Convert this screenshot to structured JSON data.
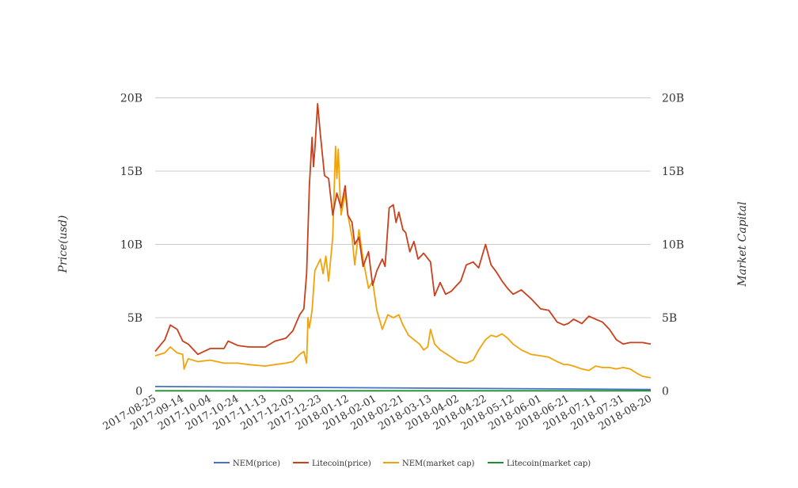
{
  "chart_data": {
    "type": "line",
    "title": "",
    "ylabel_left": "Price(usd)",
    "ylabel_right": "Market Capital",
    "ylim_left": [
      0,
      20000000000
    ],
    "ylim_right": [
      0,
      20000000000
    ],
    "y_ticks_left": [
      "0",
      "5B",
      "10B",
      "15B",
      "20B"
    ],
    "y_ticks_right": [
      "0",
      "5B",
      "10B",
      "15B",
      "20B"
    ],
    "y_tick_values": [
      0,
      5000000000,
      10000000000,
      15000000000,
      20000000000
    ],
    "x_ticks": [
      "2017-08-25",
      "2017-09-14",
      "2017-10-04",
      "2017-10-24",
      "2017-11-13",
      "2017-12-03",
      "2017-12-23",
      "2018-01-12",
      "2018-02-01",
      "2018-02-21",
      "2018-03-13",
      "2018-04-02",
      "2018-04-22",
      "2018-05-12",
      "2018-06-01",
      "2018-06-21",
      "2018-07-11",
      "2018-07-31",
      "2018-08-20"
    ],
    "x_range": [
      "2017-08-25",
      "2018-08-20"
    ],
    "grid": true,
    "legend_position": "bottom",
    "series": [
      {
        "name": "NEM(price)",
        "color": "#4472c4",
        "x": [
          "2017-08-25",
          "2018-08-20"
        ],
        "y": [
          0.3,
          0.1
        ]
      },
      {
        "name": "Litecoin(price)",
        "color": "#c8401c",
        "x": [
          "2017-08-25",
          "2017-09-01",
          "2017-09-05",
          "2017-09-10",
          "2017-09-14",
          "2017-09-18",
          "2017-09-25",
          "2017-10-04",
          "2017-10-14",
          "2017-10-17",
          "2017-10-24",
          "2017-11-01",
          "2017-11-13",
          "2017-11-20",
          "2017-11-28",
          "2017-12-03",
          "2017-12-08",
          "2017-12-11",
          "2017-12-13",
          "2017-12-15",
          "2017-12-17",
          "2017-12-18",
          "2017-12-19",
          "2017-12-21",
          "2017-12-23",
          "2017-12-26",
          "2017-12-29",
          "2018-01-01",
          "2018-01-04",
          "2018-01-07",
          "2018-01-10",
          "2018-01-12",
          "2018-01-15",
          "2018-01-17",
          "2018-01-20",
          "2018-01-23",
          "2018-01-27",
          "2018-01-30",
          "2018-02-02",
          "2018-02-06",
          "2018-02-08",
          "2018-02-11",
          "2018-02-14",
          "2018-02-16",
          "2018-02-18",
          "2018-02-21",
          "2018-02-23",
          "2018-02-26",
          "2018-03-01",
          "2018-03-04",
          "2018-03-08",
          "2018-03-13",
          "2018-03-16",
          "2018-03-20",
          "2018-03-24",
          "2018-03-28",
          "2018-04-01",
          "2018-04-04",
          "2018-04-08",
          "2018-04-13",
          "2018-04-17",
          "2018-04-22",
          "2018-04-26",
          "2018-04-30",
          "2018-05-04",
          "2018-05-08",
          "2018-05-12",
          "2018-05-18",
          "2018-05-25",
          "2018-06-01",
          "2018-06-07",
          "2018-06-13",
          "2018-06-18",
          "2018-06-21",
          "2018-06-25",
          "2018-07-01",
          "2018-07-06",
          "2018-07-11",
          "2018-07-16",
          "2018-07-21",
          "2018-07-26",
          "2018-07-31",
          "2018-08-05",
          "2018-08-10",
          "2018-08-14",
          "2018-08-20"
        ],
        "y": [
          2.7,
          3.5,
          4.5,
          4.2,
          3.4,
          3.2,
          2.5,
          2.9,
          2.9,
          3.4,
          3.1,
          3.0,
          3.0,
          3.4,
          3.6,
          4.1,
          5.2,
          5.6,
          8.0,
          14.0,
          17.3,
          15.3,
          16.5,
          19.6,
          17.5,
          14.7,
          14.5,
          12.0,
          13.5,
          12.5,
          14.0,
          12.0,
          11.5,
          10.0,
          10.5,
          8.5,
          9.5,
          7.2,
          8.2,
          9.0,
          8.5,
          12.5,
          12.7,
          11.5,
          12.2,
          11.0,
          10.8,
          9.5,
          10.2,
          9.0,
          9.4,
          8.8,
          6.5,
          7.4,
          6.6,
          6.8,
          7.2,
          7.5,
          8.6,
          8.8,
          8.4,
          10.0,
          8.6,
          8.1,
          7.5,
          7.0,
          6.6,
          6.9,
          6.3,
          5.6,
          5.5,
          4.7,
          4.5,
          4.6,
          4.9,
          4.6,
          5.1,
          4.9,
          4.7,
          4.2,
          3.5,
          3.2,
          3.3,
          3.3,
          3.3,
          3.2
        ]
      },
      {
        "name": "NEM(market cap)",
        "color": "#f0a30a",
        "x": [
          "2017-08-25",
          "2017-09-01",
          "2017-09-05",
          "2017-09-10",
          "2017-09-14",
          "2017-09-15",
          "2017-09-18",
          "2017-09-25",
          "2017-10-04",
          "2017-10-14",
          "2017-10-24",
          "2017-11-01",
          "2017-11-13",
          "2017-11-20",
          "2017-11-28",
          "2017-12-03",
          "2017-12-08",
          "2017-12-11",
          "2017-12-13",
          "2017-12-14",
          "2017-12-15",
          "2017-12-17",
          "2017-12-19",
          "2017-12-23",
          "2017-12-25",
          "2017-12-27",
          "2017-12-29",
          "2018-01-01",
          "2018-01-03",
          "2018-01-04",
          "2018-01-05",
          "2018-01-06",
          "2018-01-07",
          "2018-01-10",
          "2018-01-12",
          "2018-01-15",
          "2018-01-17",
          "2018-01-20",
          "2018-01-23",
          "2018-01-27",
          "2018-01-30",
          "2018-02-02",
          "2018-02-06",
          "2018-02-10",
          "2018-02-14",
          "2018-02-18",
          "2018-02-21",
          "2018-02-25",
          "2018-03-01",
          "2018-03-05",
          "2018-03-08",
          "2018-03-11",
          "2018-03-13",
          "2018-03-16",
          "2018-03-20",
          "2018-03-25",
          "2018-04-02",
          "2018-04-08",
          "2018-04-13",
          "2018-04-17",
          "2018-04-22",
          "2018-04-26",
          "2018-04-30",
          "2018-05-04",
          "2018-05-08",
          "2018-05-12",
          "2018-05-18",
          "2018-05-25",
          "2018-06-01",
          "2018-06-07",
          "2018-06-13",
          "2018-06-18",
          "2018-06-21",
          "2018-06-25",
          "2018-07-01",
          "2018-07-06",
          "2018-07-11",
          "2018-07-16",
          "2018-07-21",
          "2018-07-26",
          "2018-07-31",
          "2018-08-05",
          "2018-08-10",
          "2018-08-14",
          "2018-08-20"
        ],
        "y": [
          2.4,
          2.6,
          3.0,
          2.6,
          2.5,
          1.5,
          2.2,
          2.0,
          2.1,
          1.9,
          1.9,
          1.8,
          1.7,
          1.8,
          1.9,
          2.0,
          2.5,
          2.7,
          1.9,
          5.0,
          4.3,
          5.5,
          8.2,
          9.0,
          8.0,
          9.2,
          7.5,
          10.5,
          16.7,
          14.5,
          16.5,
          14.0,
          12.0,
          13.5,
          12.0,
          10.5,
          8.6,
          11.0,
          9.0,
          7.0,
          7.5,
          5.5,
          4.2,
          5.2,
          5.0,
          5.2,
          4.5,
          3.8,
          3.5,
          3.2,
          2.8,
          3.0,
          4.2,
          3.2,
          2.8,
          2.5,
          2.0,
          1.9,
          2.1,
          2.8,
          3.5,
          3.8,
          3.7,
          3.9,
          3.6,
          3.2,
          2.8,
          2.5,
          2.4,
          2.3,
          2.0,
          1.8,
          1.8,
          1.7,
          1.5,
          1.4,
          1.7,
          1.6,
          1.6,
          1.5,
          1.6,
          1.5,
          1.2,
          1.0,
          0.9
        ]
      },
      {
        "name": "Litecoin(market cap)",
        "color": "#1e8f2e",
        "x": [
          "2017-08-25",
          "2018-08-20"
        ],
        "y": [
          0.01,
          0.01
        ]
      }
    ]
  }
}
